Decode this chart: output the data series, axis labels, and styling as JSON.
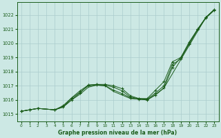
{
  "xlabel": "Graphe pression niveau de la mer (hPa)",
  "bg_color": "#cce8e4",
  "grid_color": "#aacccc",
  "line_color": "#1a5c1a",
  "xlim": [
    -0.5,
    23.5
  ],
  "ylim": [
    1014.5,
    1022.9
  ],
  "xticks": [
    0,
    1,
    2,
    3,
    4,
    5,
    6,
    7,
    8,
    9,
    10,
    11,
    12,
    13,
    14,
    15,
    16,
    17,
    18,
    19,
    20,
    21,
    22,
    23
  ],
  "yticks": [
    1015,
    1016,
    1017,
    1018,
    1019,
    1020,
    1021,
    1022
  ],
  "curves": [
    {
      "x": [
        0,
        1,
        2,
        4,
        5,
        6,
        7,
        8,
        9,
        10,
        11,
        12,
        13,
        14,
        15,
        16,
        17,
        18,
        19,
        20,
        21,
        22,
        23
      ],
      "y": [
        1015.2,
        1015.3,
        1015.4,
        1015.3,
        1015.5,
        1016.0,
        1016.5,
        1017.05,
        1017.1,
        1017.05,
        1016.9,
        1016.65,
        1016.2,
        1016.1,
        1016.05,
        1016.5,
        1017.0,
        1018.5,
        1018.9,
        1020.0,
        1021.0,
        1021.85,
        1022.4
      ],
      "has_markers": true
    },
    {
      "x": [
        0,
        1,
        2,
        4,
        5,
        6,
        7,
        8,
        9,
        10,
        11,
        12,
        13,
        14,
        15,
        16,
        17,
        18,
        19,
        20,
        21,
        22,
        23
      ],
      "y": [
        1015.2,
        1015.3,
        1015.4,
        1015.3,
        1015.6,
        1016.15,
        1016.65,
        1017.05,
        1017.1,
        1017.1,
        1017.0,
        1016.8,
        1016.3,
        1016.1,
        1016.1,
        1016.7,
        1017.3,
        1018.7,
        1019.0,
        1020.1,
        1021.0,
        1021.85,
        1022.4
      ],
      "has_markers": true
    },
    {
      "x": [
        0,
        1,
        2,
        4,
        5,
        6,
        7,
        8,
        9,
        10,
        11,
        12,
        13,
        14,
        15,
        16,
        17,
        22,
        23
      ],
      "y": [
        1015.2,
        1015.3,
        1015.4,
        1015.3,
        1015.5,
        1016.0,
        1016.4,
        1016.9,
        1017.05,
        1017.0,
        1016.6,
        1016.35,
        1016.1,
        1016.05,
        1016.0,
        1016.4,
        1016.85,
        1021.85,
        1022.4
      ],
      "has_markers": false
    },
    {
      "x": [
        0,
        1,
        2,
        4,
        5,
        6,
        7,
        8,
        9,
        10,
        11,
        12,
        13,
        14,
        15,
        16,
        17,
        18,
        19,
        20,
        21,
        22,
        23
      ],
      "y": [
        1015.2,
        1015.3,
        1015.4,
        1015.3,
        1015.55,
        1016.1,
        1016.55,
        1017.0,
        1017.05,
        1017.0,
        1016.7,
        1016.45,
        1016.15,
        1016.05,
        1016.0,
        1016.35,
        1016.85,
        1018.3,
        1019.0,
        1019.95,
        1020.95,
        1021.8,
        1022.35
      ],
      "has_markers": true
    }
  ]
}
